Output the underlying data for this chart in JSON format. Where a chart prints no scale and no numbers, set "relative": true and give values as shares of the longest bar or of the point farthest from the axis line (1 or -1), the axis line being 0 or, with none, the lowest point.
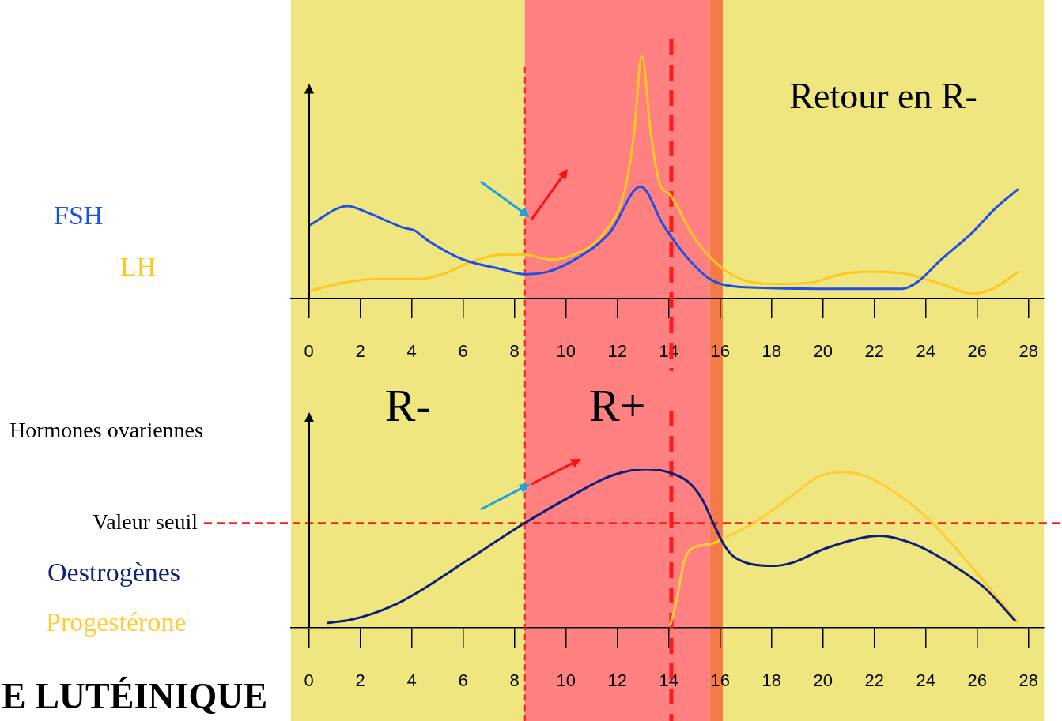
{
  "chart_data": [
    {
      "type": "line",
      "relative": true,
      "xlim": [
        -0.7,
        28.6
      ],
      "xticks": [
        0,
        2,
        4,
        6,
        8,
        10,
        12,
        14,
        16,
        18,
        20,
        22,
        24,
        26,
        28
      ],
      "grid": false,
      "legend": "left",
      "marker": "none",
      "line_style": "solid",
      "bands": [
        {
          "axis": "x",
          "from": -0.7,
          "to": 8.4,
          "color": "#f0e67f"
        },
        {
          "axis": "x",
          "from": 8.4,
          "to": 15.6,
          "color": "#ff8080"
        },
        {
          "axis": "x",
          "from": 15.6,
          "to": 16.1,
          "color": "#f47a48"
        },
        {
          "axis": "x",
          "from": 16.1,
          "to": 28.6,
          "color": "#f0e67f",
          "label": "Retour en R-"
        }
      ],
      "ref_lines": [
        {
          "axis": "x",
          "value": 8.4,
          "color": "#ff1a1a",
          "line_style": "dashed"
        },
        {
          "axis": "x",
          "value": 14.1,
          "color": "#ff1a1a",
          "line_style": "dashed"
        }
      ],
      "series": [
        {
          "name": "FSH",
          "color": "#1e4fe6",
          "x": [
            0,
            1.5,
            2.35,
            3.7,
            4.1,
            4.6,
            5.4,
            6,
            7.5,
            8.4,
            9.3,
            10.5,
            11.7,
            12.9,
            13.8,
            14.7,
            15.6,
            16.5,
            17.4,
            19.8,
            22.2,
            23.1,
            23.7,
            24.6,
            25.8,
            26.7,
            27.6
          ],
          "values": [
            0.3,
            0.38,
            0.35,
            0.29,
            0.28,
            0.24,
            0.19,
            0.16,
            0.12,
            0.1,
            0.11,
            0.17,
            0.27,
            0.46,
            0.3,
            0.17,
            0.08,
            0.05,
            0.045,
            0.04,
            0.04,
            0.04,
            0.07,
            0.16,
            0.27,
            0.37,
            0.45
          ]
        },
        {
          "name": "LH",
          "color": "#ffc820",
          "x": [
            0,
            1.1,
            2.65,
            4.2,
            5.2,
            6.3,
            7.5,
            8.4,
            9.4,
            10.3,
            11.4,
            12.3,
            12.65,
            12.95,
            13.3,
            13.6,
            14.1,
            15,
            15.9,
            16.8,
            18,
            19.5,
            20.7,
            21.9,
            23.3,
            24.6,
            25.8,
            26.6,
            27.6
          ],
          "values": [
            0.03,
            0.06,
            0.08,
            0.08,
            0.1,
            0.15,
            0.18,
            0.18,
            0.16,
            0.18,
            0.26,
            0.45,
            0.68,
            1,
            0.68,
            0.49,
            0.42,
            0.25,
            0.14,
            0.08,
            0.06,
            0.065,
            0.1,
            0.11,
            0.1,
            0.06,
            0.02,
            0.04,
            0.11
          ]
        }
      ]
    },
    {
      "type": "line",
      "relative": true,
      "xlim": [
        -0.7,
        28.6
      ],
      "xticks": [
        0,
        2,
        4,
        6,
        8,
        10,
        12,
        14,
        16,
        18,
        20,
        22,
        24,
        26,
        28
      ],
      "grid": false,
      "legend": "left",
      "marker": "none",
      "line_style": "solid",
      "ylabel": "Hormones ovariennes",
      "bands": [
        {
          "axis": "x",
          "from": -0.7,
          "to": 8.4,
          "color": "#f0e67f",
          "label": "R-"
        },
        {
          "axis": "x",
          "from": 8.4,
          "to": 15.6,
          "color": "#ff8080",
          "label": "R+"
        },
        {
          "axis": "x",
          "from": 15.6,
          "to": 16.1,
          "color": "#f47a48"
        },
        {
          "axis": "x",
          "from": 16.1,
          "to": 28.6,
          "color": "#f0e67f"
        }
      ],
      "ref_lines": [
        {
          "axis": "x",
          "value": 8.4,
          "color": "#ff1a1a",
          "line_style": "dashed"
        },
        {
          "axis": "x",
          "value": 14.1,
          "color": "#ff1a1a",
          "line_style": "dashed"
        },
        {
          "axis": "y",
          "value": 0.66,
          "label": "Valeur seuil",
          "color": "#ff1a1a",
          "line_style": "dashed"
        }
      ],
      "annotations": [
        "E LUTÉINIQUE"
      ],
      "series": [
        {
          "name": "Oestrogènes",
          "color": "#0b1f7a",
          "x": [
            0.7,
            1.6,
            2.5,
            3.4,
            4.3,
            6.2,
            8.4,
            10.1,
            11.8,
            13.1,
            14,
            14.75,
            15.3,
            15.7,
            16.2,
            16.6,
            18.1,
            18.8,
            20.1,
            21.6,
            22.2,
            23.5,
            25,
            26.3,
            27.5
          ],
          "values": [
            0.03,
            0.05,
            0.09,
            0.15,
            0.23,
            0.43,
            0.66,
            0.82,
            0.96,
            1,
            0.98,
            0.92,
            0.81,
            0.67,
            0.51,
            0.44,
            0.39,
            0.41,
            0.5,
            0.57,
            0.58,
            0.53,
            0.4,
            0.25,
            0.04
          ]
        },
        {
          "name": "Progestérone",
          "color": "#ffcc33",
          "x": [
            14.05,
            14.3,
            14.6,
            14.9,
            15.7,
            16.2,
            17.2,
            18.7,
            19.8,
            20.7,
            21.6,
            23.1,
            24.2,
            25.7,
            27.6
          ],
          "values": [
            0.01,
            0.17,
            0.42,
            0.5,
            0.53,
            0.57,
            0.65,
            0.82,
            0.95,
            0.98,
            0.96,
            0.82,
            0.67,
            0.4,
            0.03
          ]
        }
      ]
    }
  ]
}
